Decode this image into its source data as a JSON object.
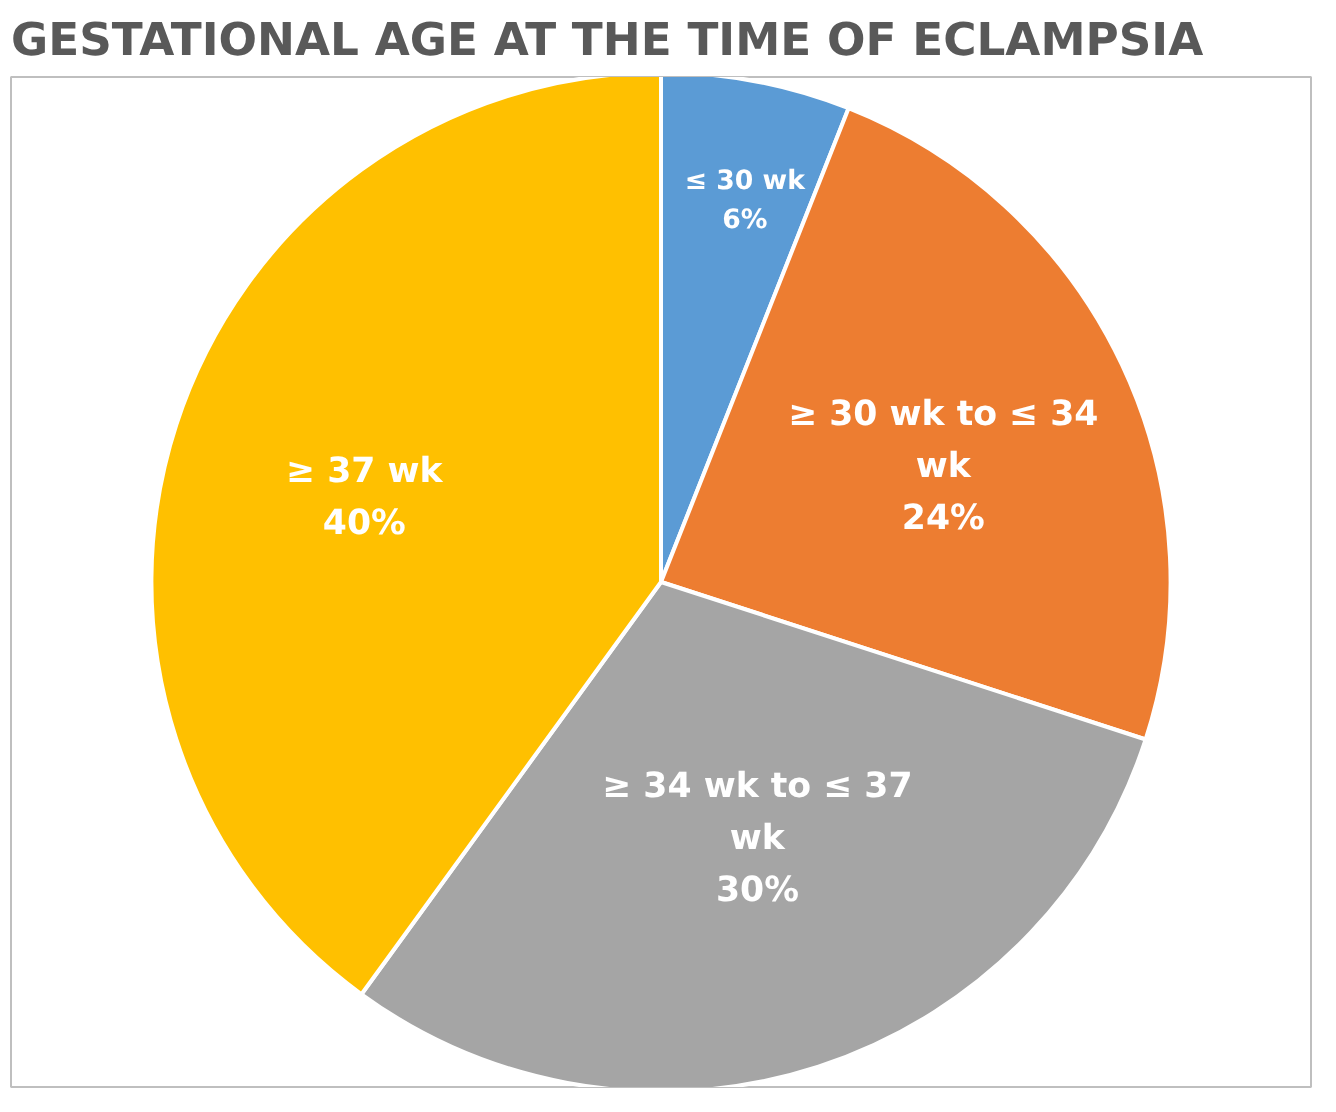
{
  "chart_data": {
    "type": "pie",
    "title": "GESTATIONAL AGE AT THE TIME OF ECLAMPSIA",
    "categories": [
      "≤ 30 wk",
      "≥ 30 wk to ≤ 34 wk",
      "≥ 34 wk to ≤ 37 wk",
      "≥ 37 wk"
    ],
    "values": [
      6,
      24,
      30,
      40
    ],
    "value_labels": [
      "6%",
      "24%",
      "30%",
      "40%"
    ],
    "colors": [
      "#5b9bd5",
      "#ed7d31",
      "#a5a5a5",
      "#ffc000"
    ]
  }
}
